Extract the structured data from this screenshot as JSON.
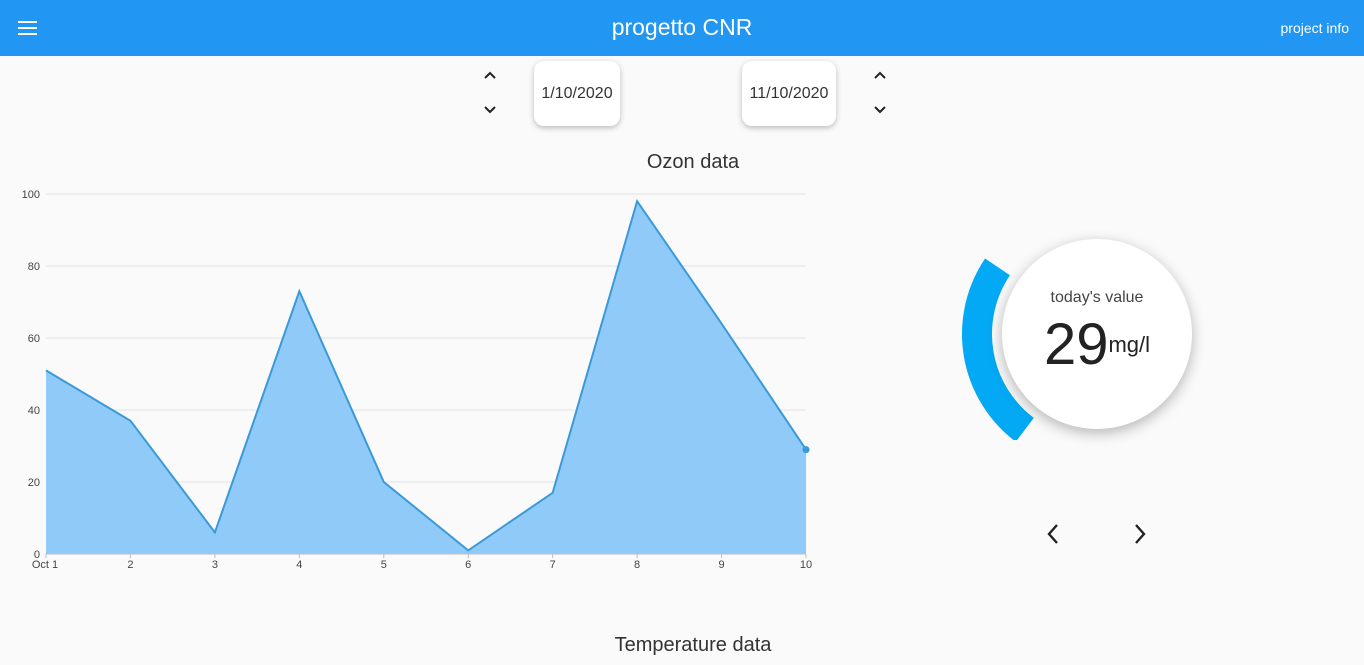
{
  "appbar": {
    "title": "progetto CNR",
    "project_info_label": "project info",
    "color": "#2196f3"
  },
  "date_range": {
    "start": "1/10/2020",
    "end": "11/10/2020"
  },
  "ozone_section": {
    "title": "Ozon data"
  },
  "temperature_section": {
    "title": "Temperature data"
  },
  "chart_data": {
    "type": "area",
    "title": "Ozon data",
    "categories": [
      "Oct 1",
      "2",
      "3",
      "4",
      "5",
      "6",
      "7",
      "8",
      "9",
      "10"
    ],
    "values": [
      51,
      37,
      6,
      73,
      20,
      1,
      17,
      98,
      64,
      29
    ],
    "ylim": [
      0,
      100
    ],
    "yticks": [
      0,
      20,
      40,
      60,
      80,
      100
    ],
    "xlabel": "",
    "ylabel": "",
    "grid": true,
    "legend": "none",
    "fill_color": "#90caf9",
    "line_color": "#3a9ad9"
  },
  "gauge": {
    "caption": "today's value",
    "value": "29",
    "unit": "mg/l",
    "fraction": 0.29,
    "color": "#03a9f4"
  },
  "icons": {
    "menu": "menu-icon",
    "up": "chevron-up-icon",
    "down": "chevron-down-icon",
    "prev": "chevron-left-icon",
    "next": "chevron-right-icon"
  }
}
